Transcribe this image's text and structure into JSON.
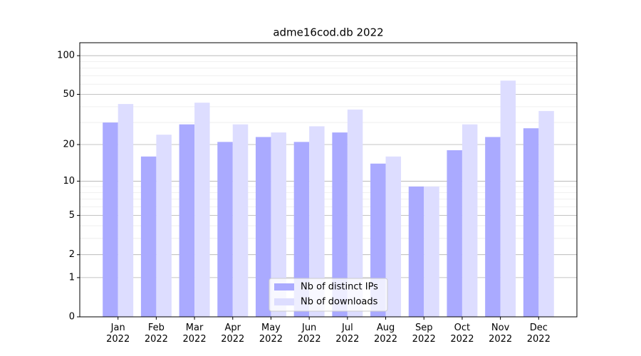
{
  "chart_data": {
    "type": "bar",
    "title": "adme16cod.db 2022",
    "categories": [
      "Jan 2022",
      "Feb 2022",
      "Mar 2022",
      "Apr 2022",
      "May 2022",
      "Jun 2022",
      "Jul 2022",
      "Aug 2022",
      "Sep 2022",
      "Oct 2022",
      "Nov 2022",
      "Dec 2022"
    ],
    "series": [
      {
        "name": "Nb of distinct IPs",
        "color": "#aaaaff",
        "values": [
          30,
          16,
          29,
          21,
          23,
          21,
          25,
          14,
          9,
          18,
          23,
          27
        ]
      },
      {
        "name": "Nb of downloads",
        "color": "#ddddff",
        "values": [
          42,
          24,
          43,
          29,
          25,
          28,
          38,
          16,
          9,
          29,
          64,
          37
        ]
      }
    ],
    "yscale": "log1p",
    "ylim": [
      0,
      126
    ],
    "yticks": [
      0,
      1,
      2,
      5,
      10,
      20,
      50,
      100
    ],
    "minor_yticks": [
      3,
      4,
      6,
      7,
      8,
      9,
      30,
      40,
      60,
      70,
      80,
      90
    ],
    "xlim": [
      -1,
      12
    ],
    "grid": true,
    "legend": "lower center"
  }
}
